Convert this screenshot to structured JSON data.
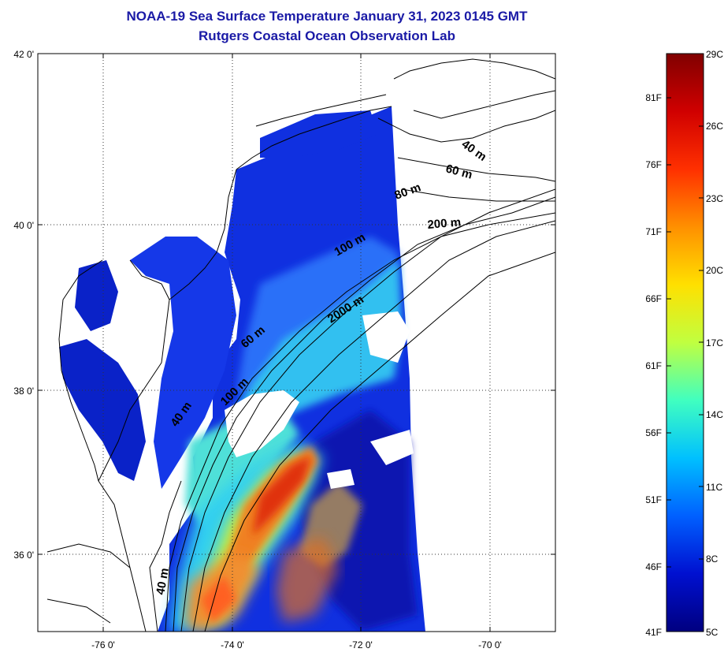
{
  "map": {
    "title_line1": "NOAA-19 Sea Surface Temperature January 31, 2023 0145 GMT",
    "title_line2": "Rutgers Coastal Ocean Observation Lab",
    "lat_labels": [
      "42 0'",
      "40 0'",
      "38 0'",
      "36 0'"
    ],
    "lon_labels": [
      "-76 0'",
      "-74 0'",
      "-72 0'",
      "-70 0'"
    ],
    "isobath_labels": [
      "40 m",
      "60 m",
      "80 m",
      "200 m",
      "100 m",
      "2000 m",
      "60 m",
      "40 m",
      "100 m",
      "40 m"
    ]
  },
  "colorbar": {
    "f_labels": [
      "81F",
      "76F",
      "71F",
      "66F",
      "61F",
      "56F",
      "51F",
      "46F",
      "41F"
    ],
    "c_labels": [
      "29C",
      "26C",
      "23C",
      "20C",
      "17C",
      "14C",
      "11C",
      "8C",
      "5C"
    ],
    "colors": [
      "#800000",
      "#d00000",
      "#ff3000",
      "#ff9000",
      "#ffe000",
      "#c0ff40",
      "#40ffc0",
      "#00c0ff",
      "#0060ff",
      "#0010d0",
      "#000080"
    ]
  }
}
